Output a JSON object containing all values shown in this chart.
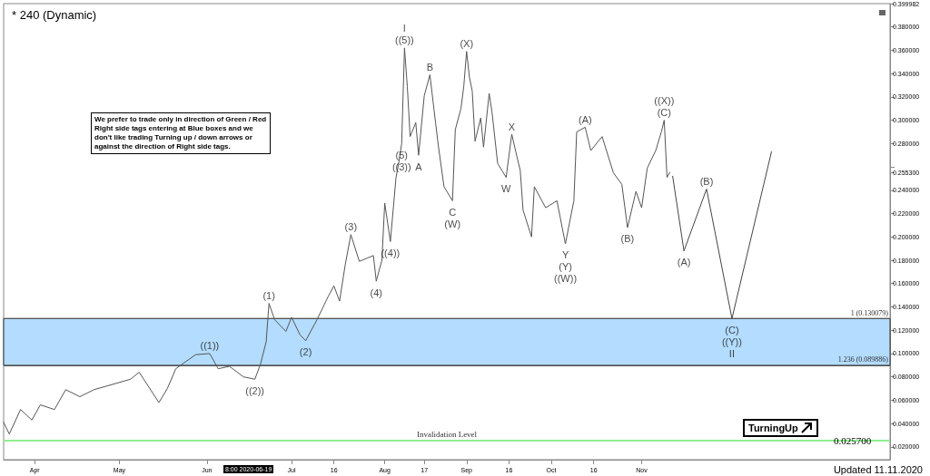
{
  "chart_data": {
    "type": "line",
    "title": "* 240 (Dynamic)",
    "series": [
      {
        "color": "#555555",
        "x": [
          "2020-03-21",
          "2020-03-23",
          "2020-03-27",
          "2020-03-31",
          "2020-04-03",
          "2020-04-08",
          "2020-04-12",
          "2020-04-17",
          "2020-04-22",
          "2020-05-05",
          "2020-05-08",
          "2020-05-15",
          "2020-05-18",
          "2020-05-21",
          "2020-05-28",
          "2020-06-02",
          "2020-06-05",
          "2020-06-09",
          "2020-06-14",
          "2020-06-18",
          "2020-06-20",
          "2020-06-22",
          "2020-06-23",
          "2020-06-25",
          "2020-06-29",
          "2020-07-01",
          "2020-07-04",
          "2020-07-06",
          "2020-07-10",
          "2020-07-14",
          "2020-07-16",
          "2020-07-18",
          "2020-07-20",
          "2020-07-22",
          "2020-07-25",
          "2020-07-30",
          "2020-07-31",
          "2020-08-02",
          "2020-08-03",
          "2020-08-05",
          "2020-08-07",
          "2020-08-08",
          "2020-08-09",
          "2020-08-10",
          "2020-08-11",
          "2020-08-12",
          "2020-08-14",
          "2020-08-15",
          "2020-08-17",
          "2020-08-19",
          "2020-08-21",
          "2020-08-22",
          "2020-08-24",
          "2020-08-27",
          "2020-08-28",
          "2020-08-30",
          "2020-08-31",
          "2020-09-01",
          "2020-09-02",
          "2020-09-03",
          "2020-09-04",
          "2020-09-06",
          "2020-09-07",
          "2020-09-09",
          "2020-09-10",
          "2020-09-12",
          "2020-09-15",
          "2020-09-17",
          "2020-09-19",
          "2020-09-20",
          "2020-09-21",
          "2020-09-24",
          "2020-09-25",
          "2020-09-29",
          "2020-10-03",
          "2020-10-06",
          "2020-10-09",
          "2020-10-10",
          "2020-10-13",
          "2020-10-15",
          "2020-10-19",
          "2020-10-23",
          "2020-10-26",
          "2020-10-28",
          "2020-10-31",
          "2020-11-02",
          "2020-11-04",
          "2020-11-07",
          "2020-11-09",
          "2020-11-10",
          "2020-11-11",
          "2020-11-12"
        ],
        "values": [
          0.041,
          0.031,
          0.052,
          0.043,
          0.056,
          0.052,
          0.069,
          0.063,
          0.069,
          0.078,
          0.084,
          0.058,
          0.07,
          0.087,
          0.099,
          0.1,
          0.087,
          0.089,
          0.08,
          0.078,
          0.091,
          0.11,
          0.143,
          0.129,
          0.119,
          0.131,
          0.116,
          0.111,
          0.129,
          0.149,
          0.158,
          0.145,
          0.176,
          0.202,
          0.179,
          0.184,
          0.162,
          0.18,
          0.229,
          0.196,
          0.251,
          0.264,
          0.28,
          0.362,
          0.329,
          0.286,
          0.298,
          0.27,
          0.321,
          0.339,
          0.298,
          0.278,
          0.243,
          0.231,
          0.292,
          0.31,
          0.329,
          0.359,
          0.337,
          0.325,
          0.282,
          0.302,
          0.277,
          0.323,
          0.307,
          0.263,
          0.251,
          0.288,
          0.267,
          0.257,
          0.223,
          0.2,
          0.243,
          0.225,
          0.231,
          0.194,
          0.231,
          0.29,
          0.294,
          0.274,
          0.286,
          0.255,
          0.245,
          0.208,
          0.239,
          0.225,
          0.259,
          0.274,
          0.29,
          0.3,
          0.251,
          0.2553
        ]
      },
      {
        "color": "#444444",
        "x": [
          "2020-11-13",
          "2020-11-17",
          "2020-11-25",
          "2020-12-04",
          "2020-12-18"
        ],
        "values": [
          0.252,
          0.188,
          0.241,
          0.13,
          0.273
        ]
      }
    ],
    "xlim": [
      "2020-03-21",
      "2021-01-29"
    ],
    "xticks": [
      {
        "value": "2020-04-01",
        "label": "Apr"
      },
      {
        "value": "2020-05-01",
        "label": "May"
      },
      {
        "value": "2020-06-01",
        "label": "Jun"
      },
      {
        "value": "2020-07-01",
        "label": "Jul"
      },
      {
        "value": "2020-07-16",
        "label": "16"
      },
      {
        "value": "2020-08-03",
        "label": "Aug"
      },
      {
        "value": "2020-08-17",
        "label": "17"
      },
      {
        "value": "2020-09-01",
        "label": "Sep"
      },
      {
        "value": "2020-09-16",
        "label": "16"
      },
      {
        "value": "2020-10-01",
        "label": "Oct"
      },
      {
        "value": "2020-10-16",
        "label": "16"
      },
      {
        "value": "2020-11-02",
        "label": "Nov"
      }
    ],
    "ylim": [
      0.009,
      0.399982
    ],
    "yticks": [
      {
        "value": 0.02,
        "label": "0.020000"
      },
      {
        "value": 0.04,
        "label": "0.040000"
      },
      {
        "value": 0.06,
        "label": "0.060000"
      },
      {
        "value": 0.08,
        "label": "0.080000"
      },
      {
        "value": 0.1,
        "label": "0.100000"
      },
      {
        "value": 0.12,
        "label": "0.120000"
      },
      {
        "value": 0.14,
        "label": "0.140000"
      },
      {
        "value": 0.16,
        "label": "0.160000"
      },
      {
        "value": 0.18,
        "label": "0.180000"
      },
      {
        "value": 0.2,
        "label": "0.200000"
      },
      {
        "value": 0.22,
        "label": "0.220000"
      },
      {
        "value": 0.24,
        "label": "0.240000"
      },
      {
        "value": 0.2553,
        "label": "0.255300"
      },
      {
        "value": 0.26,
        "label": null
      },
      {
        "value": 0.28,
        "label": "0.280000"
      },
      {
        "value": 0.3,
        "label": "0.300000"
      },
      {
        "value": 0.32,
        "label": "0.320000"
      },
      {
        "value": 0.34,
        "label": "0.340000"
      },
      {
        "value": 0.36,
        "label": "0.360000"
      },
      {
        "value": 0.38,
        "label": "0.380000"
      },
      {
        "value": 0.399982,
        "label": "0.399982"
      }
    ],
    "bands": [
      {
        "axis": "y",
        "from": 0.089886,
        "to": 0.130079,
        "color": "#b3dcff"
      }
    ],
    "ref_lines": [
      {
        "axis": "y",
        "value": 0.130079,
        "label": "1 (0.130079)",
        "color": "#555555"
      },
      {
        "axis": "y",
        "value": 0.089886,
        "label": "1.236 (0.089886)",
        "color": "#555555"
      },
      {
        "axis": "y",
        "value": 0.0257,
        "label": "Invalidation Level",
        "color": "#90ee90"
      }
    ],
    "annotations": [
      {
        "text": "((5))",
        "x": "2020-08-10",
        "y": 0.362
      },
      {
        "text": "I",
        "x": "2020-08-10",
        "y": 0.362
      },
      {
        "text": "B",
        "x": "2020-08-19",
        "y": 0.339
      },
      {
        "text": "A",
        "x": "2020-08-15",
        "y": 0.27
      },
      {
        "text": "(5)",
        "x": "2020-08-09",
        "y": 0.28
      },
      {
        "text": "((3))",
        "x": "2020-08-09",
        "y": 0.28
      },
      {
        "text": "((4))",
        "x": "2020-08-05",
        "y": 0.196
      },
      {
        "text": "(3)",
        "x": "2020-07-22",
        "y": 0.202
      },
      {
        "text": "(4)",
        "x": "2020-07-31",
        "y": 0.162
      },
      {
        "text": "(1)",
        "x": "2020-06-23",
        "y": 0.143
      },
      {
        "text": "(2)",
        "x": "2020-07-06",
        "y": 0.111
      },
      {
        "text": "((1))",
        "x": "2020-06-02",
        "y": 0.1
      },
      {
        "text": "((2))",
        "x": "2020-06-18",
        "y": 0.078
      },
      {
        "text": "C",
        "x": "2020-08-27",
        "y": 0.231
      },
      {
        "text": "(W)",
        "x": "2020-08-27",
        "y": 0.231
      },
      {
        "text": "(X)",
        "x": "2020-09-01",
        "y": 0.359
      },
      {
        "text": "X",
        "x": "2020-09-17",
        "y": 0.288
      },
      {
        "text": "W",
        "x": "2020-09-15",
        "y": 0.251
      },
      {
        "text": "Y",
        "x": "2020-10-06",
        "y": 0.194
      },
      {
        "text": "(Y)",
        "x": "2020-10-06",
        "y": 0.194
      },
      {
        "text": "((W))",
        "x": "2020-10-06",
        "y": 0.194
      },
      {
        "text": "(A)",
        "x": "2020-10-13",
        "y": 0.294
      },
      {
        "text": "(B)",
        "x": "2020-10-28",
        "y": 0.208
      },
      {
        "text": "(C)",
        "x": "2020-11-10",
        "y": 0.3
      },
      {
        "text": "((X))",
        "x": "2020-11-10",
        "y": 0.3
      },
      {
        "text": "(A)",
        "x": "2020-11-17",
        "y": 0.188
      },
      {
        "text": "(B)",
        "x": "2020-11-25",
        "y": 0.241
      },
      {
        "text": "(C)",
        "x": "2020-12-04",
        "y": 0.13
      },
      {
        "text": "((Y))",
        "x": "2020-12-04",
        "y": 0.13
      },
      {
        "text": "II",
        "x": "2020-12-04",
        "y": 0.13
      },
      "We prefer to trade only in direction of Green / Red Right side tags entering at Blue boxes and we don't like trading Turning up / down arrows or against the direction of Right side tags.",
      "TurningUp",
      "Updated 11.11.2020",
      "8:00 2020-06-19",
      "0.025700"
    ],
    "grid": false,
    "legend": false,
    "marker": "none",
    "line_style": "solid"
  }
}
